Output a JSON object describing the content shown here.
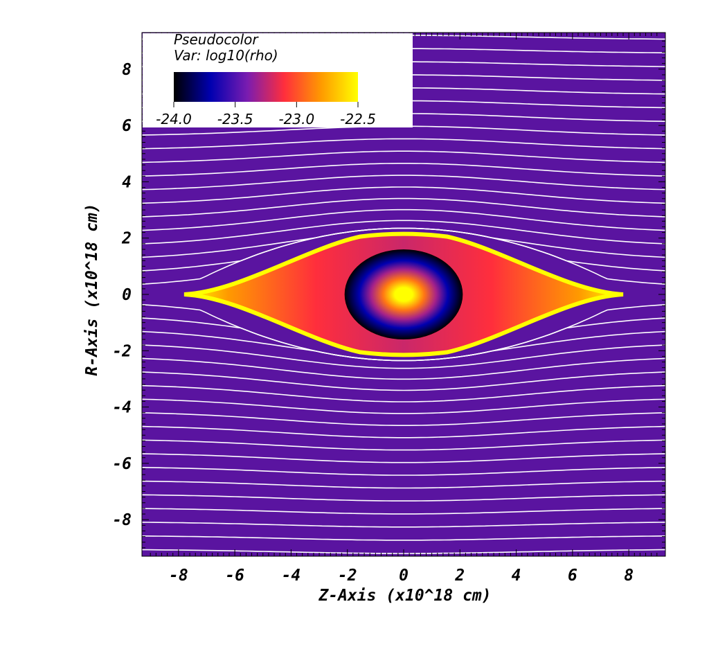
{
  "chart_data": {
    "type": "heatmap",
    "plot_type": "Pseudocolor",
    "variable": "Var: log10(rho)",
    "xlabel": "Z-Axis (x10^18 cm)",
    "ylabel": "R-Axis (x10^18 cm)",
    "xlim": [
      -9.3,
      9.3
    ],
    "ylim": [
      -9.3,
      9.3
    ],
    "x_ticks": [
      -8,
      -6,
      -4,
      -2,
      0,
      2,
      4,
      6,
      8
    ],
    "x_tick_labels": [
      "-8",
      "-6",
      "-4",
      "-2",
      "0",
      "2",
      "4",
      "6",
      "8"
    ],
    "y_ticks": [
      8,
      6,
      4,
      2,
      0,
      -2,
      -4,
      -6,
      -8
    ],
    "y_tick_labels": [
      "8",
      "6",
      "4",
      "2",
      "0",
      "-2",
      "-4",
      "-6",
      "-8"
    ],
    "colorbar": {
      "range": [
        -24.0,
        -22.5
      ],
      "ticks": [
        -24.0,
        -23.5,
        -23.0,
        -22.5
      ],
      "tick_labels": [
        "-24.0",
        "-23.5",
        "-23.0",
        "-22.5"
      ],
      "colors": [
        "#000000",
        "#0000b0",
        "#7a1cb0",
        "#ff2e3c",
        "#ff9a00",
        "#ffff00"
      ]
    },
    "background_value": -23.6,
    "background_color": "#5a14a0",
    "streamline_color": "#ffffff",
    "features": {
      "shocked_shell": {
        "half_length": 7.8,
        "half_height": 2.1,
        "inner_value": -23.1,
        "rim_value": -22.5
      },
      "central_cloud": {
        "radius_z": 2.1,
        "radius_r": 1.6,
        "center_value": -22.5,
        "edge_value": -24.0
      }
    }
  }
}
